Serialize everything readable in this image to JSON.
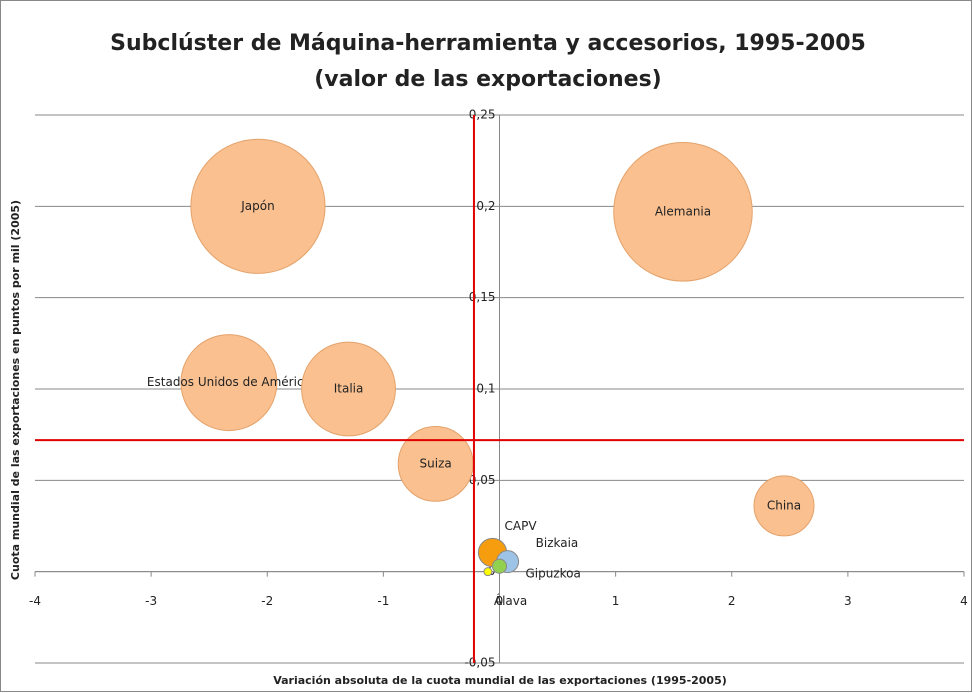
{
  "chart_data": {
    "type": "bubble",
    "title": [
      "Subclúster de Máquina-herramienta y accesorios, 1995-2005",
      "(valor de las exportaciones)"
    ],
    "x_label": "Variación absoluta de la cuota mundial de las exportaciones (1995-2005)",
    "y_label": "Cuota mundial de las exportaciones en puntos por mil (2005)",
    "labels": [
      "Japón",
      "Alemania",
      "Estados Unidos de América",
      "Italia",
      "Suiza",
      "China",
      "CAPV",
      "Bizkaia",
      "Gipuzkoa",
      "Álava"
    ],
    "x": [
      -2.08,
      1.58,
      -2.33,
      -1.3,
      -0.55,
      2.45,
      -0.06,
      0.07,
      0.0,
      -0.1
    ],
    "y": [
      0.2,
      0.197,
      0.1035,
      0.1,
      0.059,
      0.036,
      0.0105,
      0.0055,
      0.003,
      0.0
    ],
    "sizes": [
      45,
      48,
      23,
      22,
      14,
      9,
      2,
      1.2,
      0.5,
      0.16
    ],
    "colors": [
      "#fac090",
      "#fac090",
      "#fac090",
      "#fac090",
      "#fac090",
      "#fac090",
      "#f59d0f",
      "#9dc3e6",
      "#92d050",
      "#ffff00"
    ],
    "xlim": [
      -4,
      4
    ],
    "xticks": [
      -4,
      -3,
      -2,
      -1,
      0,
      1,
      2,
      3,
      4
    ],
    "ylim": [
      -0.05,
      0.25
    ],
    "yticks": [
      {
        "value": -0.05,
        "label": "-0,05"
      },
      0,
      {
        "value": 0.05,
        "label": "0,05"
      },
      {
        "value": 0.1,
        "label": "0,1"
      },
      {
        "value": 0.15,
        "label": "0,15"
      },
      {
        "value": 0.2,
        "label": "0,2"
      },
      {
        "value": 0.25,
        "label": "0,25"
      }
    ],
    "reference_lines": {
      "x": -0.22,
      "y": 0.072,
      "color": "#e00000"
    },
    "grid": true
  }
}
